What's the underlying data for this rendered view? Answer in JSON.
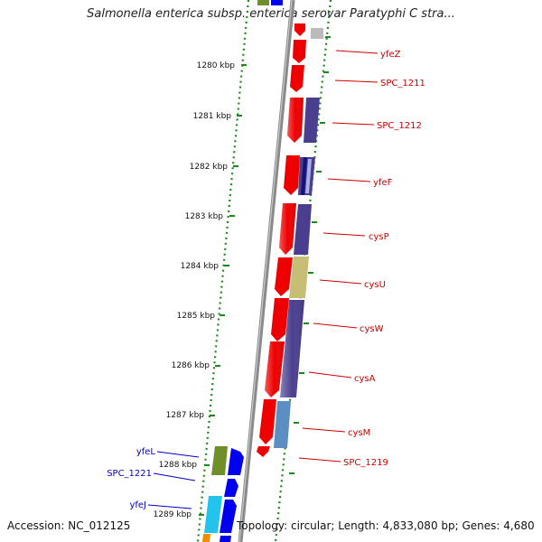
{
  "title": "Salmonella enterica subsp. enterica serovar Paratyphi C stra...",
  "accession": "Accession: NC_012125",
  "summary": "Topology: circular; Length: 4,833,080 bp; Genes: 4,680",
  "ruler": {
    "unit": "kbp",
    "ticks": [
      {
        "kbp": 1280,
        "label": "1280 kbp"
      },
      {
        "kbp": 1281,
        "label": "1281 kbp"
      },
      {
        "kbp": 1282,
        "label": "1282 kbp"
      },
      {
        "kbp": 1283,
        "label": "1283 kbp"
      },
      {
        "kbp": 1284,
        "label": "1284 kbp"
      },
      {
        "kbp": 1285,
        "label": "1285 kbp"
      },
      {
        "kbp": 1286,
        "label": "1286 kbp"
      },
      {
        "kbp": 1287,
        "label": "1287 kbp"
      },
      {
        "kbp": 1288,
        "label": "1288 kbp"
      },
      {
        "kbp": 1289,
        "label": "1289 kbp"
      }
    ]
  },
  "colors": {
    "cds": "#ee0000",
    "label_right": "#cc0000",
    "label_left": "#0000cc",
    "backbone": "#8a8a8a",
    "ruler": "#1a8a1a",
    "purple": "#4a3f8f",
    "khaki": "#c8bd75",
    "steel": "#5b8fc3",
    "navy": "#13137a",
    "olive": "#6f8f2a",
    "blue": "#0000ee",
    "cyan": "#22c4ee",
    "grey": "#bbbbbb"
  },
  "genes": [
    {
      "name": "yfeZ",
      "side": "right"
    },
    {
      "name": "SPC_1211",
      "side": "right"
    },
    {
      "name": "SPC_1212",
      "side": "right"
    },
    {
      "name": "yfeF",
      "side": "right"
    },
    {
      "name": "cysP",
      "side": "right"
    },
    {
      "name": "cysU",
      "side": "right"
    },
    {
      "name": "cysW",
      "side": "right"
    },
    {
      "name": "cysA",
      "side": "right"
    },
    {
      "name": "cysM",
      "side": "right"
    },
    {
      "name": "SPC_1219",
      "side": "right"
    },
    {
      "name": "yfeL",
      "side": "left"
    },
    {
      "name": "SPC_1221",
      "side": "left"
    },
    {
      "name": "yfeJ",
      "side": "left"
    }
  ]
}
